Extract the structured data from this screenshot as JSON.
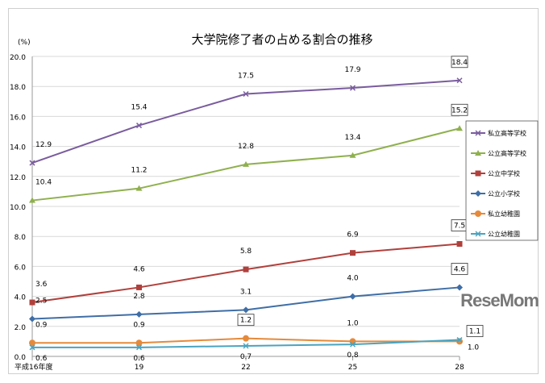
{
  "chart_data": {
    "type": "line",
    "title": "大学院修了者の占める割合の推移",
    "ylabel": "(%)",
    "categories": [
      "平成16年度",
      "19",
      "22",
      "25",
      "28"
    ],
    "ylim": [
      0,
      20
    ],
    "yticks": [
      "0.0",
      "2.0",
      "4.0",
      "6.0",
      "8.0",
      "10.0",
      "12.0",
      "14.0",
      "16.0",
      "18.0",
      "20.0"
    ],
    "grid": true,
    "legend": "right",
    "series": [
      {
        "name": "私立高等学校",
        "color": "#7a5c9e",
        "marker": "x",
        "values": [
          12.9,
          15.4,
          17.5,
          17.9,
          18.4
        ]
      },
      {
        "name": "公立高等学校",
        "color": "#8fb04e",
        "marker": "triangle",
        "values": [
          10.4,
          11.2,
          12.8,
          13.4,
          15.2
        ]
      },
      {
        "name": "公立中学校",
        "color": "#b0403c",
        "marker": "square",
        "values": [
          3.6,
          4.6,
          5.8,
          6.9,
          7.5
        ]
      },
      {
        "name": "公立小学校",
        "color": "#3f6ea6",
        "marker": "diamond",
        "values": [
          2.5,
          2.8,
          3.1,
          4.0,
          4.6
        ]
      },
      {
        "name": "私立幼稚園",
        "color": "#e58a3a",
        "marker": "circle",
        "values": [
          0.9,
          0.9,
          1.2,
          1.0,
          1.0
        ]
      },
      {
        "name": "公立幼稚園",
        "color": "#4aa3bf",
        "marker": "x",
        "values": [
          0.6,
          0.6,
          0.7,
          0.8,
          1.1
        ]
      }
    ]
  },
  "watermark": "ReseMom"
}
